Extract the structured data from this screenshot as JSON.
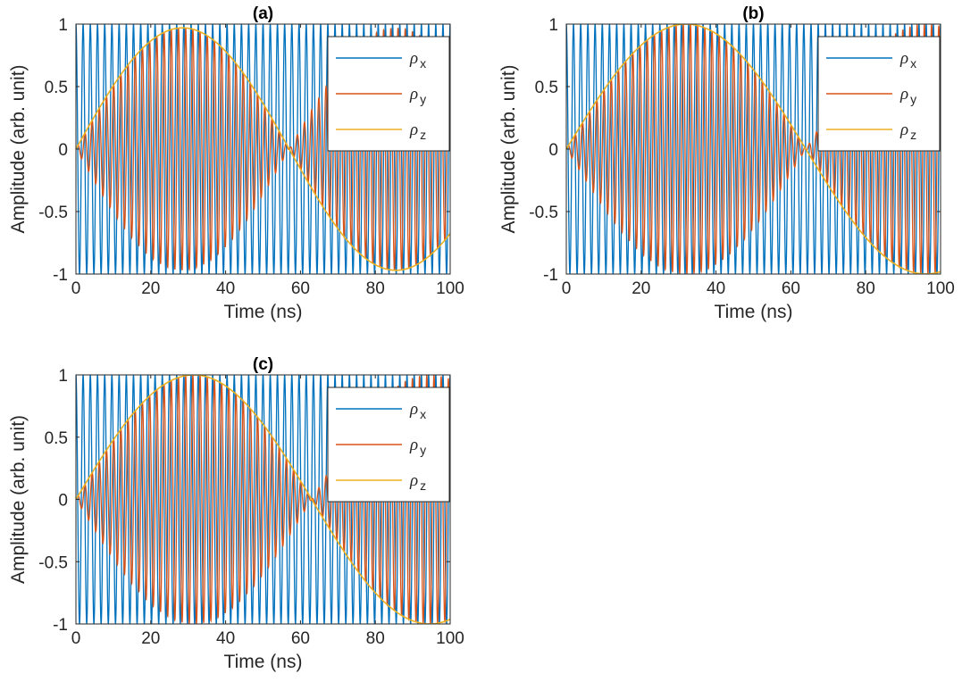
{
  "colors": {
    "rho_x": "#0072BD",
    "rho_y": "#D95319",
    "rho_z": "#EDB120",
    "axes": "#262626"
  },
  "chart_data": [
    {
      "type": "line",
      "title": "(a)",
      "xlabel": "Time (ns)",
      "ylabel": "Amplitude (arb. unit)",
      "xlim": [
        0,
        100
      ],
      "ylim": [
        -1,
        1
      ],
      "xticks": [
        "0",
        "20",
        "40",
        "60",
        "80",
        "100"
      ],
      "yticks": [
        "-1",
        "-0.5",
        "0",
        "0.5",
        "1"
      ],
      "grid": false,
      "legend_position": "top-right",
      "series": [
        {
          "name": "ρx",
          "symbol": "ρ",
          "sub": "x",
          "kind": "carrier_cos",
          "carrier_freq_ghz": 0.52,
          "amplitude": 1
        },
        {
          "name": "ρy",
          "symbol": "ρ",
          "sub": "y",
          "kind": "carrier_sin_envelope",
          "carrier_freq_ghz": 0.52,
          "envelope_peak": 0.97,
          "envelope_period_ns": 114
        },
        {
          "name": "ρz",
          "symbol": "ρ",
          "sub": "z",
          "kind": "envelope",
          "envelope_peak": 0.97,
          "envelope_period_ns": 114
        }
      ]
    },
    {
      "type": "line",
      "title": "(b)",
      "xlabel": "Time (ns)",
      "ylabel": "Amplitude (arb. unit)",
      "xlim": [
        0,
        100
      ],
      "ylim": [
        -1,
        1
      ],
      "xticks": [
        "0",
        "20",
        "40",
        "60",
        "80",
        "100"
      ],
      "yticks": [
        "-1",
        "-0.5",
        "0",
        "0.5",
        "1"
      ],
      "grid": false,
      "legend_position": "top-right",
      "series": [
        {
          "name": "ρx",
          "symbol": "ρ",
          "sub": "x",
          "kind": "carrier_cos",
          "carrier_freq_ghz": 0.52,
          "amplitude": 1
        },
        {
          "name": "ρy",
          "symbol": "ρ",
          "sub": "y",
          "kind": "carrier_sin_envelope",
          "carrier_freq_ghz": 0.52,
          "envelope_peak": 1.0,
          "envelope_period_ns": 128
        },
        {
          "name": "ρz",
          "symbol": "ρ",
          "sub": "z",
          "kind": "envelope",
          "envelope_peak": 1.0,
          "envelope_period_ns": 128
        }
      ]
    },
    {
      "type": "line",
      "title": "(c)",
      "xlabel": "Time (ns)",
      "ylabel": "Amplitude (arb. unit)",
      "xlim": [
        0,
        100
      ],
      "ylim": [
        -1,
        1
      ],
      "xticks": [
        "0",
        "20",
        "40",
        "60",
        "80",
        "100"
      ],
      "yticks": [
        "-1",
        "-0.5",
        "0",
        "0.5",
        "1"
      ],
      "grid": false,
      "legend_position": "top-right",
      "series": [
        {
          "name": "ρx",
          "symbol": "ρ",
          "sub": "x",
          "kind": "carrier_cos",
          "carrier_freq_ghz": 0.52,
          "amplitude": 1
        },
        {
          "name": "ρy",
          "symbol": "ρ",
          "sub": "y",
          "kind": "carrier_sin_envelope",
          "carrier_freq_ghz": 0.52,
          "envelope_peak": 1.0,
          "envelope_period_ns": 126
        },
        {
          "name": "ρz",
          "symbol": "ρ",
          "sub": "z",
          "kind": "envelope",
          "envelope_peak": 1.0,
          "envelope_period_ns": 126
        }
      ]
    }
  ]
}
